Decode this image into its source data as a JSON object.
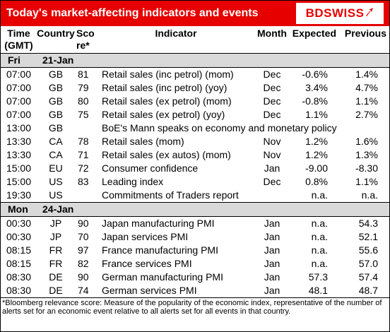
{
  "header": {
    "title": "Today's market-affecting indicators and events",
    "logo": "BDSWISS",
    "accent": "#e60000"
  },
  "columns": {
    "time": [
      "Time",
      "(GMT)"
    ],
    "country": "Country",
    "score": [
      "Sco",
      "re*"
    ],
    "indicator": "Indicator",
    "month": "Month",
    "expected": "Expected",
    "previous": "Previous"
  },
  "days": [
    {
      "day": "Fri",
      "date": "21-Jan",
      "rows": [
        {
          "time": "07:00",
          "country": "GB",
          "score": "81",
          "indicator": "Retail sales (inc petrol) (mom)",
          "month": "Dec",
          "expected": "-0.6%",
          "previous": "1.4%"
        },
        {
          "time": "07:00",
          "country": "GB",
          "score": "79",
          "indicator": "Retail sales (inc petrol) (yoy)",
          "month": "Dec",
          "expected": "3.4%",
          "previous": "4.7%"
        },
        {
          "time": "07:00",
          "country": "GB",
          "score": "80",
          "indicator": "Retail sales (ex petrol) (mom)",
          "month": "Dec",
          "expected": "-0.8%",
          "previous": "1.1%"
        },
        {
          "time": "07:00",
          "country": "GB",
          "score": "75",
          "indicator": "Retail sales (ex petrol) (yoy)",
          "month": "Dec",
          "expected": "1.1%",
          "previous": "2.7%"
        },
        {
          "time": "13:00",
          "country": "GB",
          "score": "",
          "indicator": "BoE's Mann speaks on economy and monetary policy",
          "month": "",
          "expected": "",
          "previous": ""
        },
        {
          "time": "13:30",
          "country": "CA",
          "score": "78",
          "indicator": "Retail sales (mom)",
          "month": "Nov",
          "expected": "1.2%",
          "previous": "1.6%"
        },
        {
          "time": "13:30",
          "country": "CA",
          "score": "71",
          "indicator": "Retail sales (ex autos) (mom)",
          "month": "Nov",
          "expected": "1.2%",
          "previous": "1.3%"
        },
        {
          "time": "15:00",
          "country": "EU",
          "score": "72",
          "indicator": "Consumer confidence",
          "month": "Jan",
          "expected": "-9.00",
          "previous": "-8.30"
        },
        {
          "time": "15:00",
          "country": "US",
          "score": "83",
          "indicator": "Leading index",
          "month": "Dec",
          "expected": "0.8%",
          "previous": "1.1%"
        },
        {
          "time": "19:30",
          "country": "US",
          "score": "",
          "indicator": "Commitments of Traders  report",
          "month": "",
          "expected": "n.a.",
          "previous": "n.a."
        }
      ]
    },
    {
      "day": "Mon",
      "date": "24-Jan",
      "rows": [
        {
          "time": "00:30",
          "country": "JP",
          "score": "90",
          "indicator": "Japan manufacturing PMI",
          "month": "Jan",
          "expected": "n.a.",
          "previous": "54.3"
        },
        {
          "time": "00:30",
          "country": "JP",
          "score": "70",
          "indicator": "Japan services PMI",
          "month": "Jan",
          "expected": "n.a.",
          "previous": "52.1"
        },
        {
          "time": "08:15",
          "country": "FR",
          "score": "97",
          "indicator": "France manufacturing PMI",
          "month": "Jan",
          "expected": "n.a.",
          "previous": "55.6"
        },
        {
          "time": "08:15",
          "country": "FR",
          "score": "82",
          "indicator": "France services PMI",
          "month": "Jan",
          "expected": "n.a.",
          "previous": "57.0"
        },
        {
          "time": "08:30",
          "country": "DE",
          "score": "90",
          "indicator": "German manufacturing PMI",
          "month": "Jan",
          "expected": "57.3",
          "previous": "57.4"
        },
        {
          "time": "08:30",
          "country": "DE",
          "score": "74",
          "indicator": "German services PMI",
          "month": "Jan",
          "expected": "48.1",
          "previous": "48.7"
        }
      ]
    }
  ],
  "footnote": "*Bloomberg relevance score: Measure of the popularity of the economic index, representative of the number of alerts set for an economic event relative to all alerts set for all events in that country."
}
